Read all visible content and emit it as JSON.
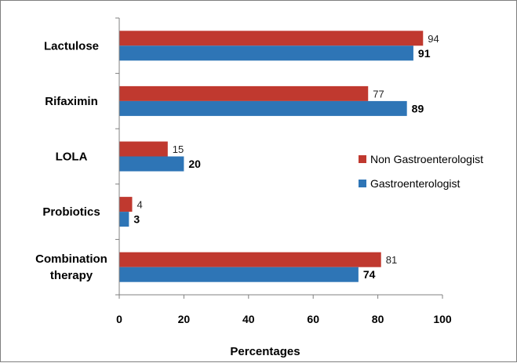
{
  "chart_data": {
    "type": "bar",
    "orientation": "horizontal",
    "categories": [
      [
        "Lactulose"
      ],
      [
        "Rifaximin"
      ],
      [
        "LOLA"
      ],
      [
        "Probiotics"
      ],
      [
        "Combination",
        "therapy"
      ]
    ],
    "series": [
      {
        "name": "Non Gastroenterologist",
        "color": "#c0392f",
        "values": [
          94,
          77,
          15,
          4,
          81
        ]
      },
      {
        "name": "Gastroenterologist",
        "color": "#2e75b6",
        "values": [
          91,
          89,
          20,
          3,
          74
        ]
      }
    ],
    "xlabel": "Percentages",
    "xlim": [
      0,
      100
    ],
    "xticks": [
      0,
      20,
      40,
      60,
      80,
      100
    ],
    "grid": false,
    "legend_position": "right"
  }
}
